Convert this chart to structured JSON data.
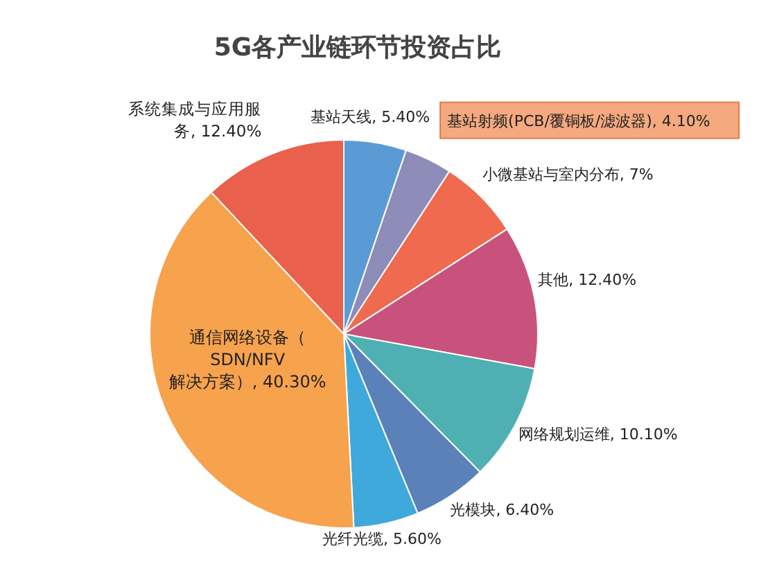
{
  "chart_data": {
    "type": "pie",
    "title": "5G各产业链环节投资占比",
    "categories": [
      "基站天线",
      "基站射频(PCB/覆铜板/滤波器)",
      "小微基站与室内分布",
      "其他",
      "网络规划运维",
      "光模块",
      "光纤光缆",
      "通信网络设备（SDN/NFV解决方案）",
      "系统集成与应用服务"
    ],
    "values": [
      5.4,
      4.1,
      7,
      12.4,
      10.1,
      6.4,
      5.6,
      40.3,
      12.4
    ],
    "value_labels": [
      "5.40%",
      "4.10%",
      "7%",
      "12.40%",
      "10.10%",
      "6.40%",
      "5.60%",
      "40.30%",
      "12.40%"
    ],
    "colors": [
      "#5b9bd5",
      "#8e8cb8",
      "#ef6a4e",
      "#c9527c",
      "#4fb0b3",
      "#5a82b8",
      "#3fa9dc",
      "#f7a24c",
      "#e9604d"
    ],
    "legend": false
  }
}
